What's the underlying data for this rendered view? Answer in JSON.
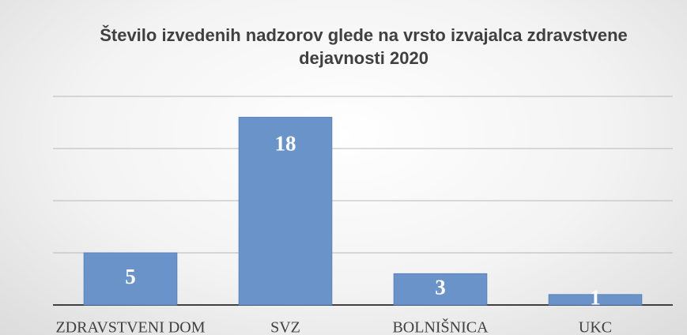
{
  "chart_data": {
    "type": "bar",
    "title": "Število izvedenih nadzorov glede na vrsto izvajalca zdravstvene dejavnosti 2020",
    "categories": [
      "ZDRAVSTVENI DOM",
      "SVZ",
      "BOLNIŠNICA",
      "UKC"
    ],
    "values": [
      5,
      18,
      3,
      1
    ],
    "color": "#6993c9",
    "ylim": [
      0,
      20
    ],
    "yticks": [
      0,
      5,
      10,
      15,
      20
    ],
    "grid": true
  }
}
